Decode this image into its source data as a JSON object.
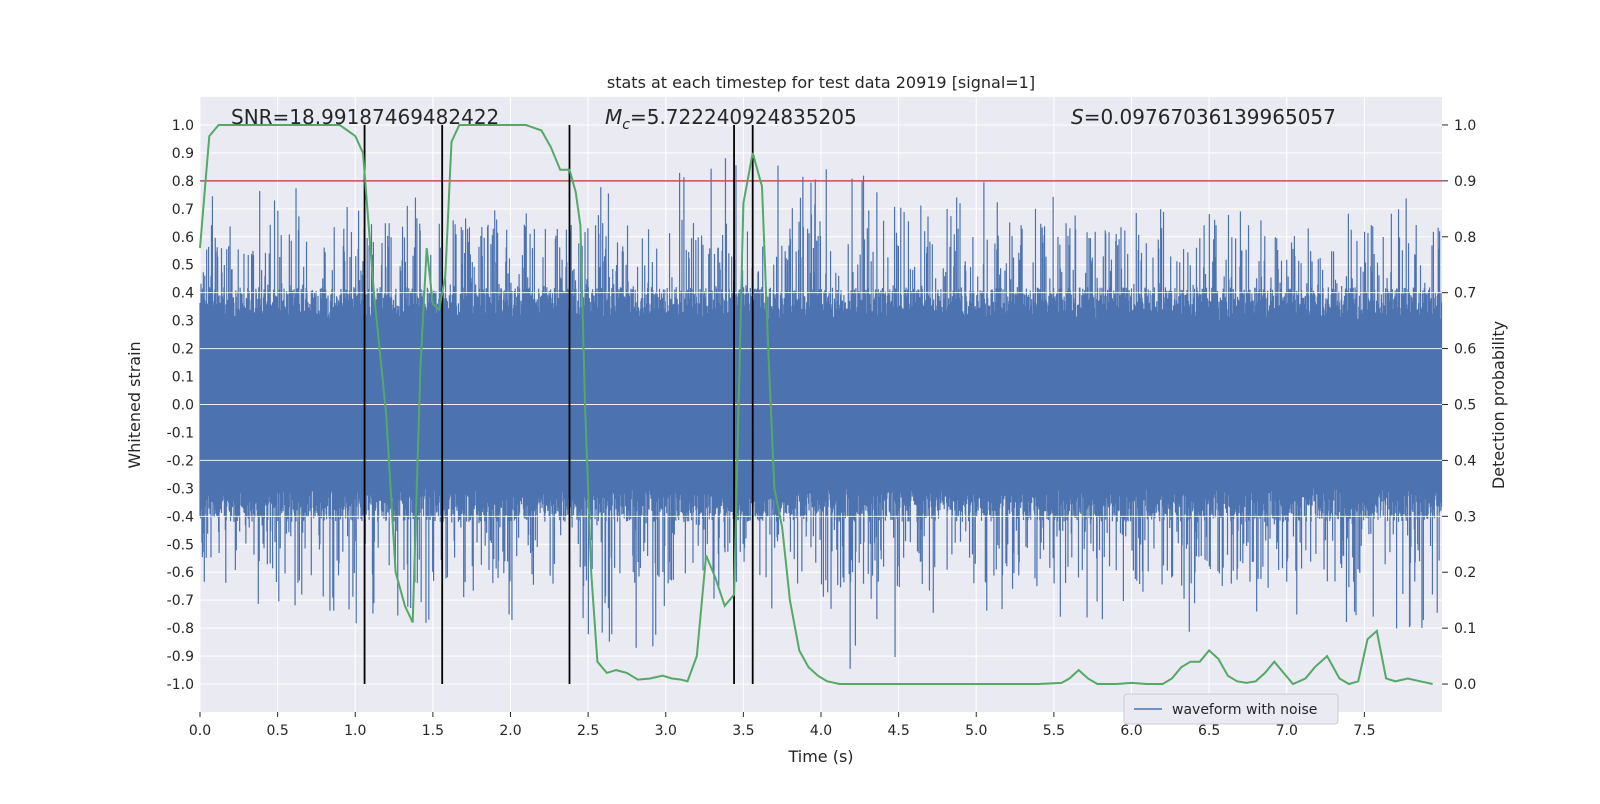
{
  "chart_data": {
    "type": "line",
    "title": "stats at each timestep for test data 20919 [signal=1]",
    "xlabel": "Time (s)",
    "ylabel_left": "Whitened strain",
    "ylabel_right": "Detection probability",
    "xlim": [
      0,
      8
    ],
    "ylim_left": [
      -1.1,
      1.1
    ],
    "ylim_right": [
      -0.05,
      1.05
    ],
    "x_ticks": [
      "0.0",
      "0.5",
      "1.0",
      "1.5",
      "2.0",
      "2.5",
      "3.0",
      "3.5",
      "4.0",
      "4.5",
      "5.0",
      "5.5",
      "6.0",
      "6.5",
      "7.0",
      "7.5"
    ],
    "y_ticks_left": [
      "1.0",
      "0.9",
      "0.8",
      "0.7",
      "0.6",
      "0.5",
      "0.4",
      "0.3",
      "0.2",
      "0.1",
      "0.0",
      "-0.1",
      "-0.2",
      "-0.3",
      "-0.4",
      "-0.5",
      "-0.6",
      "-0.7",
      "-0.8",
      "-0.9",
      "-1.0"
    ],
    "y_ticks_right": [
      "1.0",
      "0.9",
      "0.8",
      "0.7",
      "0.6",
      "0.5",
      "0.4",
      "0.3",
      "0.2",
      "0.1",
      "0.0"
    ],
    "grid": true,
    "legend": {
      "position": "bottom-right",
      "entries": [
        "waveform with noise"
      ]
    },
    "annotations": {
      "snr": "SNR=18.99187469482422",
      "mc_symbol": "M",
      "mc_sub": "c",
      "mc_value": "=5.722240924835205",
      "s_symbol": "S",
      "s_value": "=0.09767036139965057"
    },
    "threshold_line": {
      "y": 0.8,
      "axis": "left",
      "color": "#c44e52"
    },
    "vertical_markers_x": [
      1.06,
      1.56,
      2.38,
      3.44,
      3.56
    ],
    "series": [
      {
        "name": "waveform with noise",
        "axis": "left",
        "color": "#4c72b0",
        "envelope_typical": 0.3,
        "peak_max": [
          0.9,
          0.8,
          0.8,
          0.7,
          0.75,
          0.8,
          0.9,
          0.9,
          0.85,
          0.75,
          0.8,
          0.7,
          0.75,
          0.8,
          0.7,
          0.75
        ],
        "peak_min": [
          -0.75,
          -0.75,
          -0.8,
          -0.85,
          -0.8,
          -0.9,
          -0.8,
          -0.9,
          -0.99,
          -0.75,
          -0.75,
          -0.8,
          -0.9,
          -0.8,
          -0.8,
          -0.85
        ]
      },
      {
        "axis": "right",
        "color": "#55a868",
        "x": [
          0.0,
          0.06,
          0.12,
          0.2,
          0.4,
          0.6,
          0.8,
          0.9,
          0.95,
          1.0,
          1.05,
          1.12,
          1.2,
          1.26,
          1.32,
          1.37,
          1.42,
          1.46,
          1.5,
          1.54,
          1.58,
          1.62,
          1.67,
          1.72,
          1.8,
          1.9,
          2.0,
          2.1,
          2.2,
          2.26,
          2.32,
          2.38,
          2.42,
          2.45,
          2.48,
          2.52,
          2.56,
          2.62,
          2.68,
          2.75,
          2.82,
          2.9,
          2.98,
          3.04,
          3.1,
          3.14,
          3.2,
          3.26,
          3.32,
          3.38,
          3.44,
          3.5,
          3.56,
          3.62,
          3.66,
          3.7,
          3.75,
          3.8,
          3.86,
          3.92,
          3.98,
          4.04,
          4.12,
          4.2,
          4.3,
          4.5,
          4.8,
          5.0,
          5.2,
          5.4,
          5.55,
          5.6,
          5.66,
          5.72,
          5.78,
          5.9,
          6.0,
          6.1,
          6.2,
          6.26,
          6.32,
          6.38,
          6.44,
          6.5,
          6.56,
          6.62,
          6.68,
          6.74,
          6.8,
          6.86,
          6.92,
          6.98,
          7.04,
          7.12,
          7.18,
          7.26,
          7.34,
          7.4,
          7.46,
          7.52,
          7.58,
          7.64,
          7.7,
          7.78,
          7.86,
          7.94
        ],
        "y": [
          0.78,
          0.98,
          1.0,
          1.0,
          1.0,
          1.0,
          1.0,
          1.0,
          0.99,
          0.98,
          0.95,
          0.7,
          0.48,
          0.2,
          0.14,
          0.11,
          0.57,
          0.78,
          0.68,
          0.67,
          0.73,
          0.97,
          1.0,
          1.0,
          1.0,
          1.0,
          1.0,
          1.0,
          0.99,
          0.96,
          0.92,
          0.92,
          0.88,
          0.82,
          0.5,
          0.2,
          0.04,
          0.02,
          0.025,
          0.02,
          0.008,
          0.01,
          0.015,
          0.01,
          0.008,
          0.005,
          0.05,
          0.23,
          0.19,
          0.14,
          0.16,
          0.86,
          0.95,
          0.89,
          0.6,
          0.35,
          0.28,
          0.15,
          0.06,
          0.03,
          0.015,
          0.005,
          0.0,
          0.0,
          0.0,
          0.0,
          0.0,
          0.0,
          0.0,
          0.0,
          0.002,
          0.01,
          0.025,
          0.01,
          0.0,
          0.0,
          0.002,
          0.0,
          0.0,
          0.01,
          0.03,
          0.04,
          0.04,
          0.06,
          0.045,
          0.015,
          0.005,
          0.002,
          0.005,
          0.02,
          0.04,
          0.02,
          0.0,
          0.01,
          0.03,
          0.05,
          0.01,
          0.0,
          0.005,
          0.08,
          0.095,
          0.01,
          0.005,
          0.01,
          0.005,
          0.0
        ]
      }
    ]
  }
}
